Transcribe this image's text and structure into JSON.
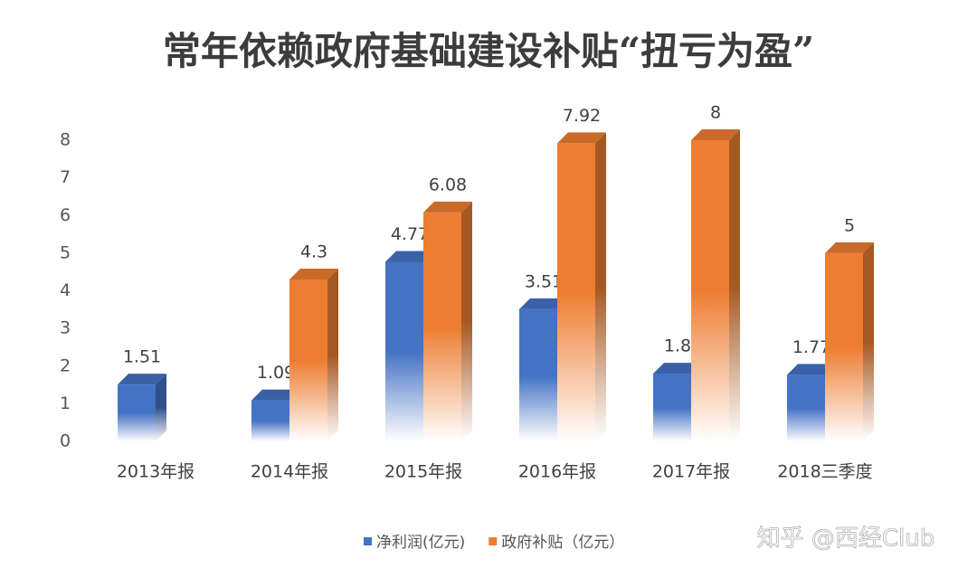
{
  "chart_data": {
    "type": "bar3d",
    "title": "常年依赖政府基础建设补贴“扭亏为盈”",
    "categories": [
      "2013年报",
      "2014年报",
      "2015年报",
      "2016年报",
      "2017年报",
      "2018三季度"
    ],
    "series": [
      {
        "name": "净利润(亿元)",
        "color": "#4472c4",
        "values": [
          1.51,
          1.09,
          4.77,
          3.51,
          1.8,
          1.77
        ]
      },
      {
        "name": "政府补贴（亿元）",
        "color": "#ed7d31",
        "values": [
          null,
          4.3,
          6.08,
          7.92,
          8,
          5
        ]
      }
    ],
    "ylim": [
      0,
      8
    ],
    "yticks": [
      0,
      1,
      2,
      3,
      4,
      5,
      6,
      7,
      8
    ],
    "grid": false,
    "legend": "bottom",
    "watermark": "知乎 @西经Club"
  }
}
